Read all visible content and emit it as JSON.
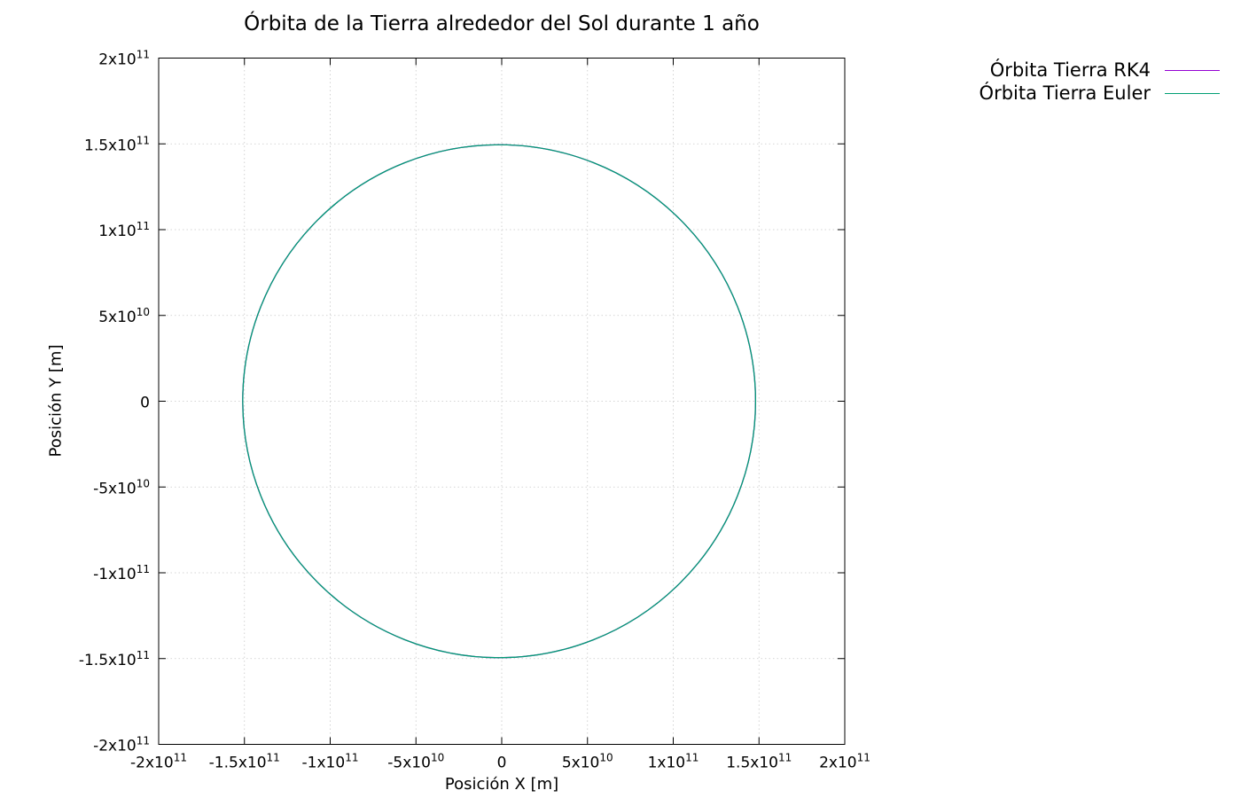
{
  "chart_data": {
    "type": "line",
    "title": "Órbita de la Tierra alrededor del Sol durante 1 año",
    "xlabel": "Posición X [m]",
    "ylabel": "Posición Y [m]",
    "xlim": [
      -200000000000.0,
      200000000000.0
    ],
    "ylim": [
      -200000000000.0,
      200000000000.0
    ],
    "x_ticks": [
      {
        "value": -200000000000.0,
        "mant": "-2x10",
        "exp": "11"
      },
      {
        "value": -150000000000.0,
        "mant": "-1.5x10",
        "exp": "11"
      },
      {
        "value": -100000000000.0,
        "mant": "-1x10",
        "exp": "11"
      },
      {
        "value": -50000000000.0,
        "mant": "-5x10",
        "exp": "10"
      },
      {
        "value": 0,
        "mant": "0",
        "exp": ""
      },
      {
        "value": 50000000000.0,
        "mant": "5x10",
        "exp": "10"
      },
      {
        "value": 100000000000.0,
        "mant": "1x10",
        "exp": "11"
      },
      {
        "value": 150000000000.0,
        "mant": "1.5x10",
        "exp": "11"
      },
      {
        "value": 200000000000.0,
        "mant": "2x10",
        "exp": "11"
      }
    ],
    "y_ticks": [
      {
        "value": 200000000000.0,
        "mant": "2x10",
        "exp": "11"
      },
      {
        "value": 150000000000.0,
        "mant": "1.5x10",
        "exp": "11"
      },
      {
        "value": 100000000000.0,
        "mant": "1x10",
        "exp": "11"
      },
      {
        "value": 50000000000.0,
        "mant": "5x10",
        "exp": "10"
      },
      {
        "value": 0,
        "mant": "0",
        "exp": ""
      },
      {
        "value": -50000000000.0,
        "mant": "-5x10",
        "exp": "10"
      },
      {
        "value": -100000000000.0,
        "mant": "-1x10",
        "exp": "11"
      },
      {
        "value": -150000000000.0,
        "mant": "-1.5x10",
        "exp": "11"
      },
      {
        "value": -200000000000.0,
        "mant": "-2x10",
        "exp": "11"
      }
    ],
    "grid": true,
    "legend_position": "outside-top-right",
    "series": [
      {
        "name": "Órbita Tierra RK4",
        "color": "#9400d3",
        "shape": "circle",
        "center": [
          -1500000000.0,
          0
        ],
        "radius": 149500000000.0
      },
      {
        "name": "Órbita Tierra Euler",
        "color": "#009e73",
        "shape": "circle",
        "center": [
          -1500000000.0,
          0
        ],
        "radius": 149500000000.0
      }
    ]
  },
  "legend": {
    "items": [
      "Órbita Tierra RK4",
      "Órbita Tierra Euler"
    ]
  }
}
